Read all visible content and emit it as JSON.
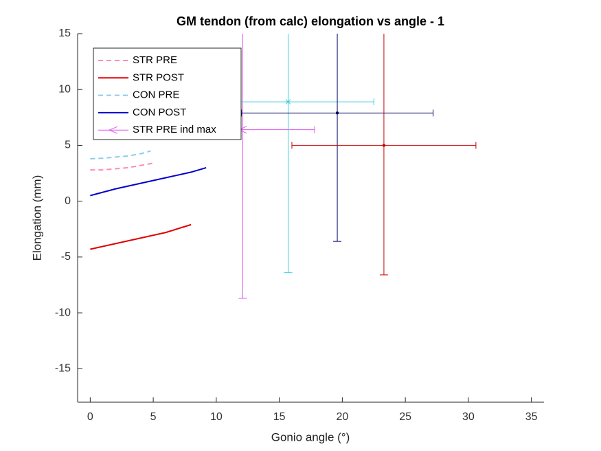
{
  "chart_data": {
    "type": "line",
    "title": "GM tendon (from calc) elongation vs angle - 1",
    "x_label": "Gonio angle (°)",
    "y_label": "Elongation (mm)",
    "xlim": [
      -1,
      36
    ],
    "xticks": [
      0,
      5,
      10,
      15,
      20,
      25,
      30,
      35
    ],
    "ylim": [
      -18,
      15
    ],
    "yticks": [
      -15,
      -10,
      -5,
      0,
      5,
      10,
      15
    ],
    "legend": "upper left",
    "series": [
      {
        "name": "STR PRE",
        "color": "#ff88bb",
        "style": "dashed",
        "x": [
          0,
          1,
          2,
          3,
          4,
          5
        ],
        "values": [
          2.8,
          2.8,
          2.9,
          3.0,
          3.2,
          3.4
        ]
      },
      {
        "name": "STR POST",
        "color": "#e00000",
        "style": "solid",
        "x": [
          0,
          2,
          4,
          6,
          8
        ],
        "values": [
          -4.3,
          -3.8,
          -3.3,
          -2.8,
          -2.1
        ]
      },
      {
        "name": "CON PRE",
        "color": "#88ccee",
        "style": "dashed",
        "x": [
          0,
          1,
          2,
          3,
          4,
          4.8
        ],
        "values": [
          3.8,
          3.85,
          3.95,
          4.05,
          4.25,
          4.5
        ]
      },
      {
        "name": "CON POST",
        "color": "#0000cc",
        "style": "solid",
        "x": [
          0,
          2,
          4,
          6,
          8,
          9.2
        ],
        "values": [
          0.5,
          1.1,
          1.6,
          2.1,
          2.6,
          3.0
        ]
      },
      {
        "name": "STR PRE ind max",
        "type": "errorbar",
        "color": "#dd55ee",
        "marker": "triangle-left",
        "x": 12.1,
        "y": 6.4,
        "xerr": 5.7,
        "yerr": 15.1
      },
      {
        "type": "errorbar",
        "color": "#44ccdd",
        "marker": "asterisk",
        "x": 15.7,
        "y": 8.9,
        "xerr": 6.8,
        "yerr": 15.3
      },
      {
        "type": "errorbar",
        "color": "#000066",
        "marker": "dot",
        "x": 19.6,
        "y": 7.9,
        "xerr": 7.6,
        "yerr": 11.5
      },
      {
        "type": "errorbar",
        "color": "#cc0000",
        "marker": "dot",
        "x": 23.3,
        "y": 5.0,
        "xerr": 7.3,
        "yerr": 11.6
      }
    ]
  }
}
